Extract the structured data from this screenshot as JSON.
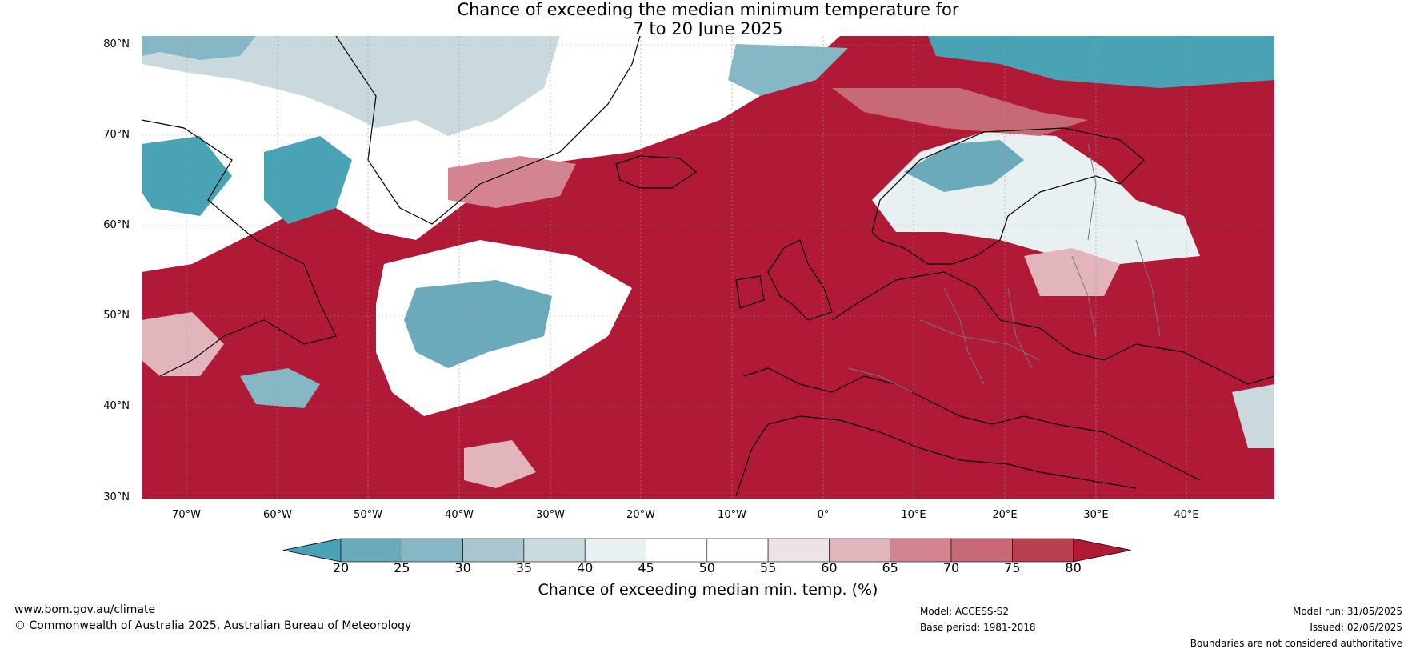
{
  "title": {
    "line1": "Chance of exceeding the median minimum temperature for",
    "line2": "7 to 20 June 2025"
  },
  "map": {
    "lat_labels": [
      "80°N",
      "70°N",
      "60°N",
      "50°N",
      "40°N",
      "30°N"
    ],
    "lon_labels": [
      "70°W",
      "60°W",
      "50°W",
      "40°W",
      "30°W",
      "20°W",
      "10°W",
      "0°",
      "10°E",
      "20°E",
      "30°E",
      "40°E"
    ]
  },
  "colorbar": {
    "ticks": [
      "20",
      "25",
      "30",
      "35",
      "40",
      "45",
      "50",
      "55",
      "60",
      "65",
      "70",
      "75",
      "80"
    ],
    "colors": [
      "#4aa3b5",
      "#6aaabb",
      "#85b7c4",
      "#a9c6ce",
      "#cad9dd",
      "#e9f0f2",
      "#ffffff",
      "#ffffff",
      "#ede3e6",
      "#e2b5bd",
      "#d48490",
      "#c76a76",
      "#b9404f",
      "#b01a36"
    ],
    "title": "Chance of exceeding median min. temp. (%)"
  },
  "footer": {
    "url": "www.bom.gov.au/climate",
    "copyright": "© Commonwealth of Australia 2025, Australian Bureau of Meteorology",
    "model": "Model: ACCESS-S2",
    "base_period": "Base period: 1981-2018",
    "model_run": "Model run: 31/05/2025",
    "issued": "Issued: 02/06/2025",
    "disclaimer": "Boundaries are not considered authoritative"
  }
}
